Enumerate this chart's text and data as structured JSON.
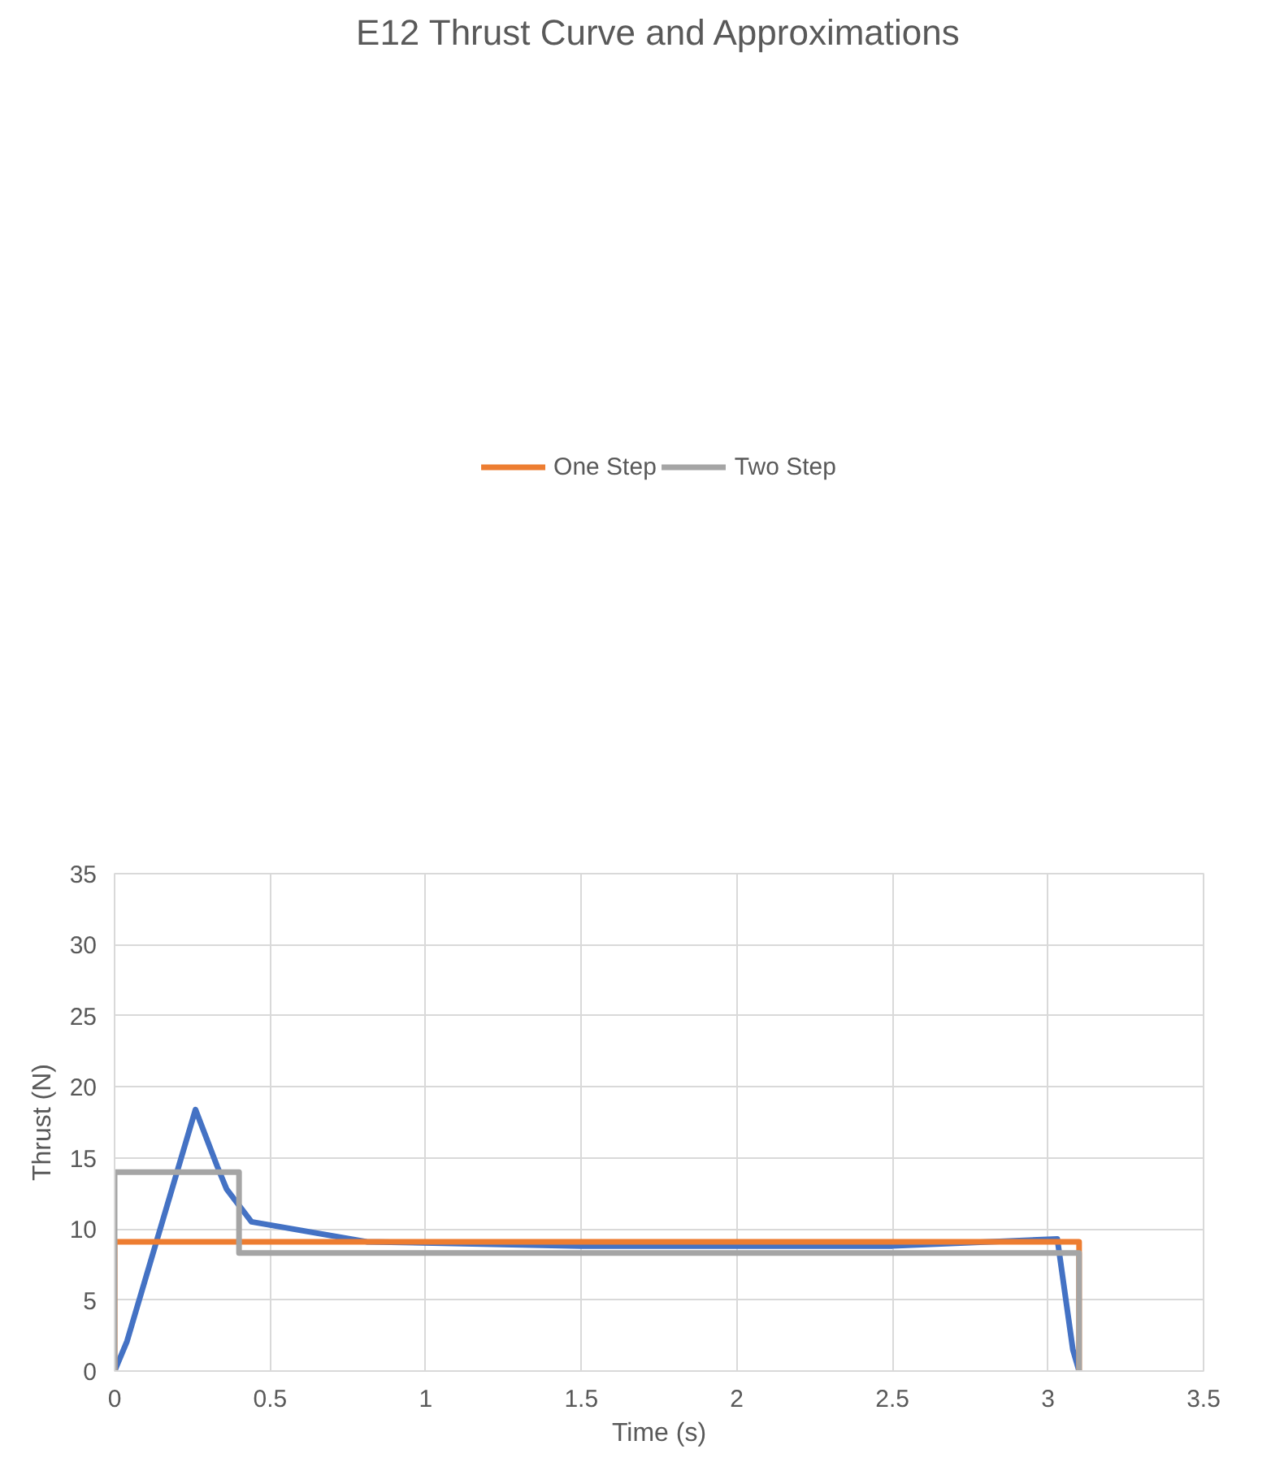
{
  "chart_data": {
    "type": "line",
    "title": "E12 Thrust Curve and Approximations",
    "xlabel": "Time (s)",
    "ylabel": "Thrust (N)",
    "xlim": [
      0,
      3.5
    ],
    "xticks": [
      0,
      0.5,
      1,
      1.5,
      2,
      2.5,
      3,
      3.5
    ],
    "ylim": [
      0,
      35
    ],
    "yticks": [
      0,
      5,
      10,
      15,
      20,
      25,
      30,
      35
    ],
    "grid": true,
    "legend": "top",
    "marker": "none",
    "line_style": "solid",
    "series": [
      {
        "color": "#4472c4",
        "x": [
          0,
          0.04,
          0.26,
          0.33,
          0.36,
          0.44,
          0.81,
          1.5,
          2.5,
          3.03,
          3.08,
          3.1
        ],
        "values": [
          0,
          2.1,
          18.4,
          14.4,
          12.8,
          10.5,
          9.1,
          8.8,
          8.8,
          9.3,
          1.5,
          0
        ]
      },
      {
        "name": "One Step",
        "color": "#ed7d31",
        "x": [
          0,
          0,
          3.1,
          3.1
        ],
        "values": [
          0,
          9.1,
          9.1,
          0
        ]
      },
      {
        "name": "Two Step",
        "color": "#a5a5a5",
        "x": [
          0,
          0,
          0.4,
          0.4,
          3.1,
          3.1
        ],
        "values": [
          0,
          14,
          14,
          8.3,
          8.3,
          0
        ]
      }
    ]
  }
}
